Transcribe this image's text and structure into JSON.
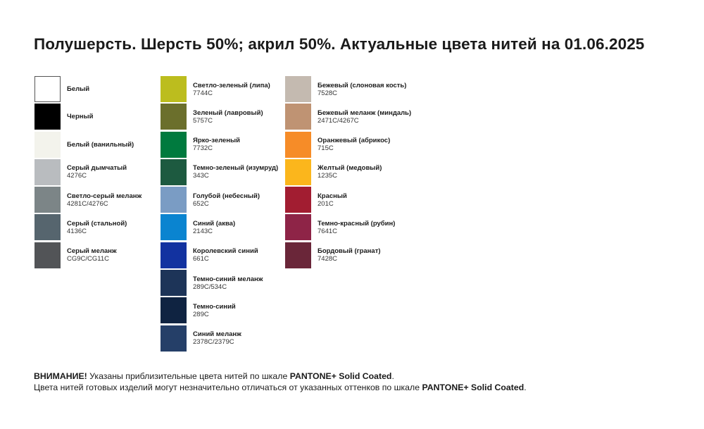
{
  "title": "Полушерсть. Шерсть 50%; акрил 50%. Актуальные цвета нитей на 01.06.2025",
  "columns": [
    [
      {
        "name": "Белый",
        "code": "",
        "color": "#ffffff"
      },
      {
        "name": "Черный",
        "code": "",
        "color": "#000000"
      },
      {
        "name": "Белый (ванильный)",
        "code": "",
        "color": "#f3f3ec"
      },
      {
        "name": "Серый дымчатый",
        "code": "4276C",
        "color": "#b9bcbf"
      },
      {
        "name": "Светло-серый меланж",
        "code": "4281C/4276C",
        "color": "#7c8587"
      },
      {
        "name": "Серый (стальной)",
        "code": "4136C",
        "color": "#56656e"
      },
      {
        "name": "Серый меланж",
        "code": "CG9C/CG11C",
        "color": "#525457"
      }
    ],
    [
      {
        "name": "Светло-зеленый (липа)",
        "code": "7744C",
        "color": "#bcbd1e"
      },
      {
        "name": "Зеленый (лавровый)",
        "code": "5757C",
        "color": "#6b6f2c"
      },
      {
        "name": "Ярко-зеленый",
        "code": "7732C",
        "color": "#007a3e"
      },
      {
        "name": "Темно-зеленый (изумруд)",
        "code": "343C",
        "color": "#1d5a40"
      },
      {
        "name": "Голубой (небесный)",
        "code": "652C",
        "color": "#7a9cc4"
      },
      {
        "name": "Синий (аква)",
        "code": "2143C",
        "color": "#0a84d0"
      },
      {
        "name": "Королевский синий",
        "code": "661C",
        "color": "#1232a0"
      },
      {
        "name": "Темно-синий меланж",
        "code": "289C/534C",
        "color": "#1d3458"
      },
      {
        "name": "Темно-синий",
        "code": "289C",
        "color": "#0f2341"
      },
      {
        "name": "Синий меланж",
        "code": "2378C/2379C",
        "color": "#253f68"
      }
    ],
    [
      {
        "name": "Бежевый (слоновая кость)",
        "code": "7528C",
        "color": "#c4bab0"
      },
      {
        "name": "Бежевый меланж (миндаль)",
        "code": "2471C/4267C",
        "color": "#bf9373"
      },
      {
        "name": "Оранжевый (абрикос)",
        "code": "715C",
        "color": "#f68c28"
      },
      {
        "name": "Желтый (медовый)",
        "code": "1235C",
        "color": "#fbb61c"
      },
      {
        "name": "Красный",
        "code": "201C",
        "color": "#a21d31"
      },
      {
        "name": "Темно-красный (рубин)",
        "code": "7641C",
        "color": "#8e2447"
      },
      {
        "name": "Бордовый (гранат)",
        "code": "7428C",
        "color": "#6a2639"
      }
    ]
  ],
  "footer": {
    "line1_bold": "ВНИМАНИЕ!",
    "line1_text": " Указаны приблизительные цвета нитей по шкале ",
    "line1_brand": "PANTONE+ Solid Coated",
    "line1_end": ".",
    "line2_text": "Цвета нитей готовых изделий могут незначительно отличаться от указанных оттенков по шкале ",
    "line2_brand": "PANTONE+ Solid Coated",
    "line2_end": "."
  }
}
